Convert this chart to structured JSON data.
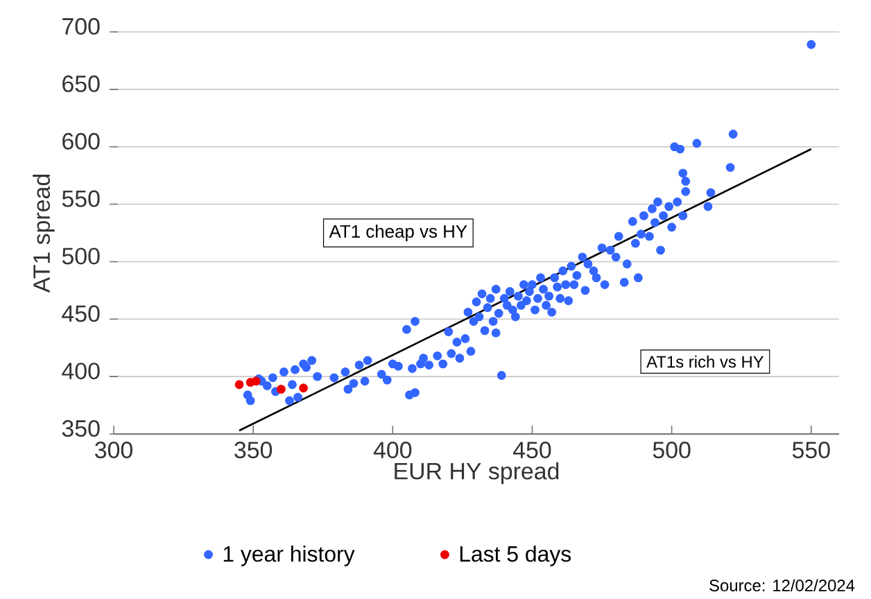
{
  "chart_data": {
    "type": "scatter",
    "xlabel": "EUR HY spread",
    "ylabel": "AT1 spread",
    "xlim": [
      300,
      560
    ],
    "ylim": [
      350,
      700
    ],
    "xticks": [
      300,
      350,
      400,
      450,
      500,
      550
    ],
    "yticks": [
      350,
      400,
      450,
      500,
      550,
      600,
      650,
      700
    ],
    "grid": "y",
    "legend": "bottom",
    "marker": "circle",
    "annotations": [
      "AT1 cheap vs HY",
      "AT1s rich vs HY",
      "Source: 12/02/2024"
    ],
    "series": [
      {
        "name": "1 year history",
        "color": "#3366ff",
        "x": [
          348,
          349,
          352,
          353,
          355,
          357,
          358,
          361,
          363,
          364,
          365,
          366,
          368,
          369,
          371,
          373,
          379,
          383,
          384,
          386,
          388,
          390,
          391,
          396,
          398,
          400,
          402,
          405,
          406,
          407,
          408,
          408,
          410,
          411,
          413,
          416,
          418,
          420,
          421,
          423,
          424,
          426,
          427,
          428,
          429,
          430,
          431,
          432,
          433,
          434,
          435,
          436,
          437,
          437,
          438,
          439,
          440,
          441,
          442,
          443,
          444,
          445,
          446,
          447,
          448,
          449,
          450,
          451,
          452,
          453,
          454,
          455,
          456,
          457,
          458,
          459,
          460,
          461,
          462,
          463,
          464,
          465,
          466,
          468,
          469,
          470,
          472,
          473,
          475,
          476,
          478,
          480,
          481,
          483,
          484,
          486,
          487,
          488,
          489,
          490,
          492,
          493,
          494,
          495,
          496,
          497,
          499,
          500,
          501,
          502,
          503,
          504,
          504,
          505,
          505,
          509,
          513,
          514,
          521,
          522,
          550
        ],
        "values": [
          384,
          379,
          398,
          396,
          392,
          399,
          387,
          404,
          379,
          393,
          406,
          382,
          411,
          408,
          414,
          400,
          399,
          404,
          389,
          394,
          410,
          396,
          414,
          402,
          397,
          411,
          409,
          441,
          384,
          407,
          448,
          386,
          411,
          416,
          410,
          418,
          411,
          439,
          420,
          430,
          416,
          433,
          456,
          422,
          448,
          465,
          452,
          472,
          440,
          460,
          468,
          448,
          476,
          438,
          455,
          401,
          468,
          462,
          474,
          458,
          452,
          470,
          462,
          480,
          466,
          474,
          480,
          458,
          468,
          486,
          476,
          462,
          470,
          456,
          486,
          478,
          468,
          492,
          480,
          466,
          496,
          480,
          488,
          504,
          475,
          498,
          492,
          486,
          512,
          480,
          510,
          504,
          522,
          482,
          498,
          535,
          516,
          486,
          524,
          540,
          522,
          546,
          534,
          552,
          510,
          540,
          548,
          530,
          600,
          552,
          598,
          540,
          577,
          570,
          561,
          603,
          548,
          560,
          582,
          611,
          689
        ]
      },
      {
        "name": "Last 5 days",
        "color": "#ee0000",
        "x": [
          345,
          349,
          351,
          360,
          368
        ],
        "values": [
          393,
          395,
          396,
          389,
          390
        ]
      },
      {
        "type": "line",
        "color": "#000000",
        "x": [
          345,
          550
        ],
        "values": [
          353,
          598
        ],
        "marker": "none"
      }
    ]
  }
}
